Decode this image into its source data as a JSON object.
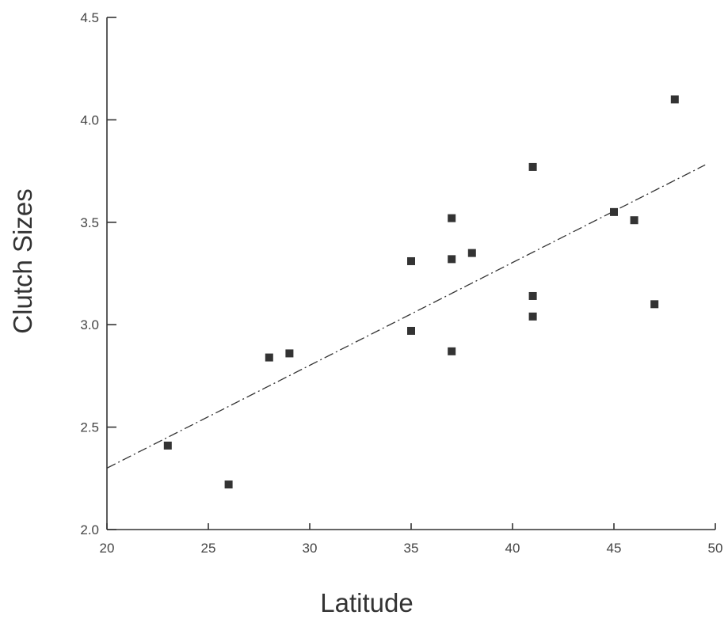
{
  "chart_data": {
    "type": "scatter",
    "xlabel": "Latitude",
    "ylabel": "Clutch Sizes",
    "xlim": [
      20,
      50
    ],
    "ylim": [
      2.0,
      4.5
    ],
    "x_ticks": [
      "20",
      "25",
      "30",
      "35",
      "40",
      "45",
      "50"
    ],
    "y_ticks": [
      "2.0",
      "2.5",
      "3.0",
      "3.5",
      "4.0",
      "4.5"
    ],
    "grid": false,
    "legend": "none",
    "marker_color": "#333333",
    "series": [
      {
        "points": [
          {
            "x": 23,
            "y": 2.41
          },
          {
            "x": 26,
            "y": 2.22
          },
          {
            "x": 28,
            "y": 2.84
          },
          {
            "x": 29,
            "y": 2.86
          },
          {
            "x": 35,
            "y": 3.31
          },
          {
            "x": 35,
            "y": 2.97
          },
          {
            "x": 37,
            "y": 3.52
          },
          {
            "x": 37,
            "y": 3.32
          },
          {
            "x": 37,
            "y": 2.87
          },
          {
            "x": 38,
            "y": 3.35
          },
          {
            "x": 41,
            "y": 3.77
          },
          {
            "x": 41,
            "y": 3.14
          },
          {
            "x": 41,
            "y": 3.04
          },
          {
            "x": 45,
            "y": 3.55
          },
          {
            "x": 46,
            "y": 3.51
          },
          {
            "x": 47,
            "y": 3.1
          },
          {
            "x": 48,
            "y": 4.1
          }
        ]
      }
    ],
    "trend_line": {
      "style": "dash-dot",
      "from": {
        "x": 20,
        "y": 2.3
      },
      "to": {
        "x": 49.5,
        "y": 3.78
      }
    }
  }
}
